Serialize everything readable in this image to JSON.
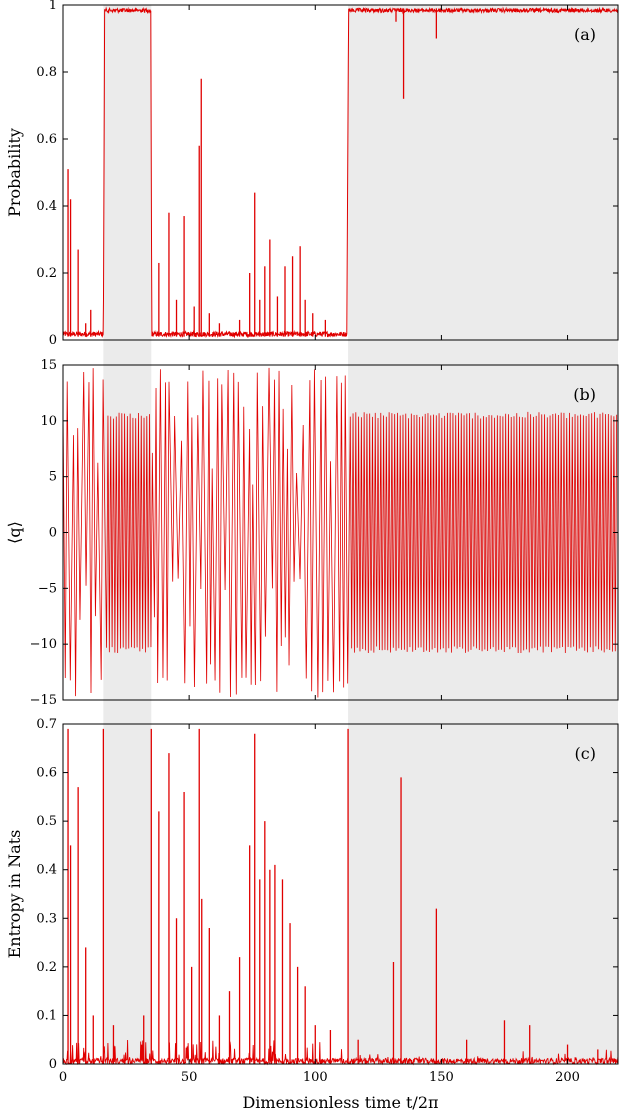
{
  "chart_data": [
    {
      "type": "line",
      "panel_label": "(a)",
      "ylabel": "Probability",
      "xlim": [
        0,
        220
      ],
      "ylim": [
        0,
        1
      ],
      "yticks": [
        0,
        0.2,
        0.4,
        0.6,
        0.8,
        1
      ],
      "yticklabels": [
        "0",
        "0.2",
        "0.4",
        "0.6",
        "0.8",
        "1"
      ],
      "shaded_regions": [
        [
          16,
          35
        ],
        [
          113,
          220
        ]
      ],
      "line_color": "#e00000",
      "baseline": [
        [
          0,
          0.01
        ],
        [
          16,
          0.01
        ],
        [
          16.5,
          0.99
        ],
        [
          34.8,
          0.99
        ],
        [
          35.2,
          0.01
        ],
        [
          112.5,
          0.01
        ],
        [
          113.2,
          0.99
        ],
        [
          220,
          0.99
        ]
      ],
      "spikes": [
        [
          2,
          0.51
        ],
        [
          3,
          0.42
        ],
        [
          6,
          0.27
        ],
        [
          9,
          0.05
        ],
        [
          11,
          0.09
        ],
        [
          38,
          0.23
        ],
        [
          42,
          0.38
        ],
        [
          45,
          0.12
        ],
        [
          48,
          0.37
        ],
        [
          52,
          0.1
        ],
        [
          54,
          0.58
        ],
        [
          54.8,
          0.78
        ],
        [
          58,
          0.08
        ],
        [
          62,
          0.05
        ],
        [
          70,
          0.06
        ],
        [
          74,
          0.2
        ],
        [
          76,
          0.44
        ],
        [
          78,
          0.12
        ],
        [
          80,
          0.22
        ],
        [
          82,
          0.3
        ],
        [
          85,
          0.13
        ],
        [
          88,
          0.22
        ],
        [
          91,
          0.25
        ],
        [
          94,
          0.28
        ],
        [
          96,
          0.12
        ],
        [
          99,
          0.08
        ],
        [
          104,
          0.06
        ]
      ],
      "dips": [
        [
          132,
          0.95
        ],
        [
          135,
          0.72
        ],
        [
          148,
          0.9
        ]
      ]
    },
    {
      "type": "line",
      "panel_label": "(b)",
      "ylabel": "⟨q⟩",
      "xlim": [
        0,
        220
      ],
      "ylim": [
        -15,
        15
      ],
      "yticks": [
        -15,
        -10,
        -5,
        0,
        5,
        10,
        15
      ],
      "yticklabels": [
        "−15",
        "−10",
        "−5",
        "0",
        "5",
        "10",
        "15"
      ],
      "shaded_regions": [
        [
          16,
          35
        ],
        [
          113,
          220
        ]
      ],
      "line_color": "#e00000",
      "regular_amplitude": 10.5,
      "chaotic_amplitude_range": [
        13,
        14.8
      ]
    },
    {
      "type": "line",
      "panel_label": "(c)",
      "xlabel": "Dimensionless time t/2π",
      "ylabel": "Entropy in Nats",
      "xlim": [
        0,
        220
      ],
      "ylim": [
        0,
        0.7
      ],
      "xticks": [
        0,
        50,
        100,
        150,
        200
      ],
      "xticklabels": [
        "0",
        "50",
        "100",
        "150",
        "200"
      ],
      "yticks": [
        0,
        0.1,
        0.2,
        0.3,
        0.4,
        0.5,
        0.6,
        0.7
      ],
      "yticklabels": [
        "0",
        "0.1",
        "0.2",
        "0.3",
        "0.4",
        "0.5",
        "0.6",
        "0.7"
      ],
      "shaded_regions": [
        [
          16,
          35
        ],
        [
          113,
          220
        ]
      ],
      "line_color": "#e00000",
      "spikes": [
        [
          2,
          0.69
        ],
        [
          3,
          0.45
        ],
        [
          6,
          0.57
        ],
        [
          9,
          0.24
        ],
        [
          12,
          0.1
        ],
        [
          16,
          0.69
        ],
        [
          20,
          0.08
        ],
        [
          32,
          0.1
        ],
        [
          35,
          0.69
        ],
        [
          38,
          0.52
        ],
        [
          42,
          0.64
        ],
        [
          45,
          0.3
        ],
        [
          48,
          0.56
        ],
        [
          51,
          0.2
        ],
        [
          54,
          0.69
        ],
        [
          55,
          0.34
        ],
        [
          58,
          0.28
        ],
        [
          62,
          0.1
        ],
        [
          66,
          0.15
        ],
        [
          70,
          0.22
        ],
        [
          74,
          0.45
        ],
        [
          76,
          0.68
        ],
        [
          78,
          0.38
        ],
        [
          80,
          0.5
        ],
        [
          82,
          0.4
        ],
        [
          84,
          0.41
        ],
        [
          87,
          0.38
        ],
        [
          90,
          0.29
        ],
        [
          93,
          0.2
        ],
        [
          96,
          0.16
        ],
        [
          100,
          0.08
        ],
        [
          106,
          0.07
        ],
        [
          113,
          0.69
        ],
        [
          117,
          0.05
        ],
        [
          131,
          0.21
        ],
        [
          134,
          0.59
        ],
        [
          148,
          0.32
        ],
        [
          160,
          0.05
        ],
        [
          175,
          0.09
        ],
        [
          185,
          0.08
        ],
        [
          200,
          0.04
        ],
        [
          212,
          0.03
        ]
      ]
    }
  ]
}
